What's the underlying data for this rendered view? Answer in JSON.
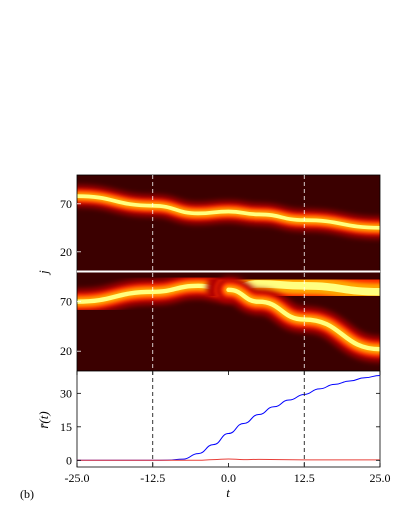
{
  "chart_data": [
    {
      "type": "heatmap",
      "panel": "top",
      "ylabel": "j",
      "yticks": [
        70,
        20
      ],
      "yrange": [
        0,
        100
      ],
      "colormap": "hot",
      "ridges": [
        {
          "t": [
            -25,
            -12.5,
            -5,
            0,
            5,
            12.5,
            25
          ],
          "j": [
            78,
            68,
            60,
            62,
            59,
            53,
            45
          ],
          "width": 7
        }
      ]
    },
    {
      "type": "heatmap",
      "panel": "middle",
      "ylabel": "j",
      "yticks": [
        70,
        20
      ],
      "yrange": [
        0,
        100
      ],
      "colormap": "hot",
      "ridges": [
        {
          "t": [
            -25,
            -12.5,
            -5,
            0
          ],
          "j": [
            70,
            80,
            86,
            82
          ],
          "width": 8
        },
        {
          "t": [
            0,
            5,
            12.5,
            25
          ],
          "j": [
            82,
            88,
            86,
            80
          ],
          "width": 14
        },
        {
          "t": [
            0,
            5,
            12.5,
            25
          ],
          "j": [
            82,
            70,
            52,
            22
          ],
          "width": 8
        }
      ]
    },
    {
      "type": "line",
      "panel": "bottom",
      "xlabel": "t",
      "ylabel": "r̄(t)",
      "xlim": [
        -25,
        25
      ],
      "ylim": [
        -3,
        40
      ],
      "xticks": [
        "-25.0",
        "-12.5",
        "0.0",
        "12.5",
        "25.0"
      ],
      "yticks": [
        "30",
        "15",
        "0"
      ],
      "vlines": [
        -12.5,
        12.5
      ],
      "series": [
        {
          "color": "#0000ff",
          "x": [
            -25,
            -12.5,
            -10,
            -7.5,
            -5,
            -2.5,
            0,
            2.5,
            5,
            7.5,
            10,
            12.5,
            15,
            17.5,
            20,
            22.5,
            25
          ],
          "y": [
            0,
            0,
            0.1,
            0.5,
            3,
            7,
            12,
            16.5,
            20.5,
            24,
            27,
            29.5,
            32,
            34,
            35.5,
            37,
            38
          ]
        },
        {
          "color": "#e8403a",
          "x": [
            -25,
            -12.5,
            -5,
            -2.5,
            0,
            2.5,
            5,
            12.5,
            25
          ],
          "y": [
            0,
            0,
            0,
            0.3,
            0.6,
            0.3,
            0.4,
            0.2,
            0.2
          ]
        }
      ]
    }
  ],
  "panel_label": "(b)"
}
